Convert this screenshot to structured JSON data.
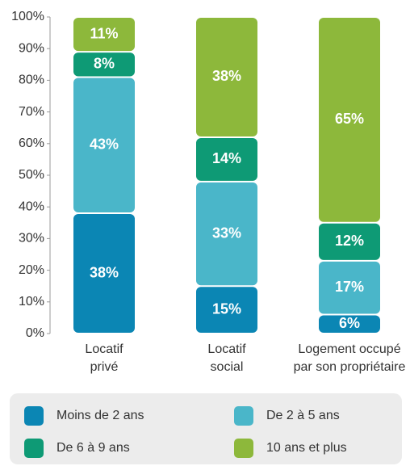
{
  "chart_data": {
    "type": "stacked-bar",
    "categories": [
      [
        "Locatif",
        "privé"
      ],
      [
        "Locatif",
        "social"
      ],
      [
        "Logement occupé",
        "par son propriétaire"
      ]
    ],
    "series": [
      {
        "name": "Moins de 2 ans",
        "color": "#0b86b4",
        "values": [
          38,
          15,
          6
        ],
        "value_labels": [
          "38%",
          "15%",
          "6%"
        ]
      },
      {
        "name": "De 2 à 5 ans",
        "color": "#4ab6c9",
        "values": [
          43,
          33,
          17
        ],
        "value_labels": [
          "43%",
          "33%",
          "17%"
        ]
      },
      {
        "name": "De 6 à 9 ans",
        "color": "#0e9a75",
        "values": [
          8,
          14,
          12
        ],
        "value_labels": [
          "8%",
          "14%",
          "12%"
        ]
      },
      {
        "name": "10 ans et plus",
        "color": "#8db83b",
        "values": [
          11,
          38,
          65
        ],
        "value_labels": [
          "11%",
          "38%",
          "65%"
        ]
      }
    ],
    "ylim": [
      0,
      100
    ],
    "yticks": [
      {
        "value": 0,
        "label": "0%"
      },
      {
        "value": 10,
        "label": "10%"
      },
      {
        "value": 20,
        "label": "20%"
      },
      {
        "value": 30,
        "label": "30%"
      },
      {
        "value": 40,
        "label": "40%"
      },
      {
        "value": 50,
        "label": "50%"
      },
      {
        "value": 60,
        "label": "60%"
      },
      {
        "value": 70,
        "label": "70%"
      },
      {
        "value": 80,
        "label": "80%"
      },
      {
        "value": 90,
        "label": "90%"
      },
      {
        "value": 100,
        "label": "100%"
      }
    ]
  }
}
